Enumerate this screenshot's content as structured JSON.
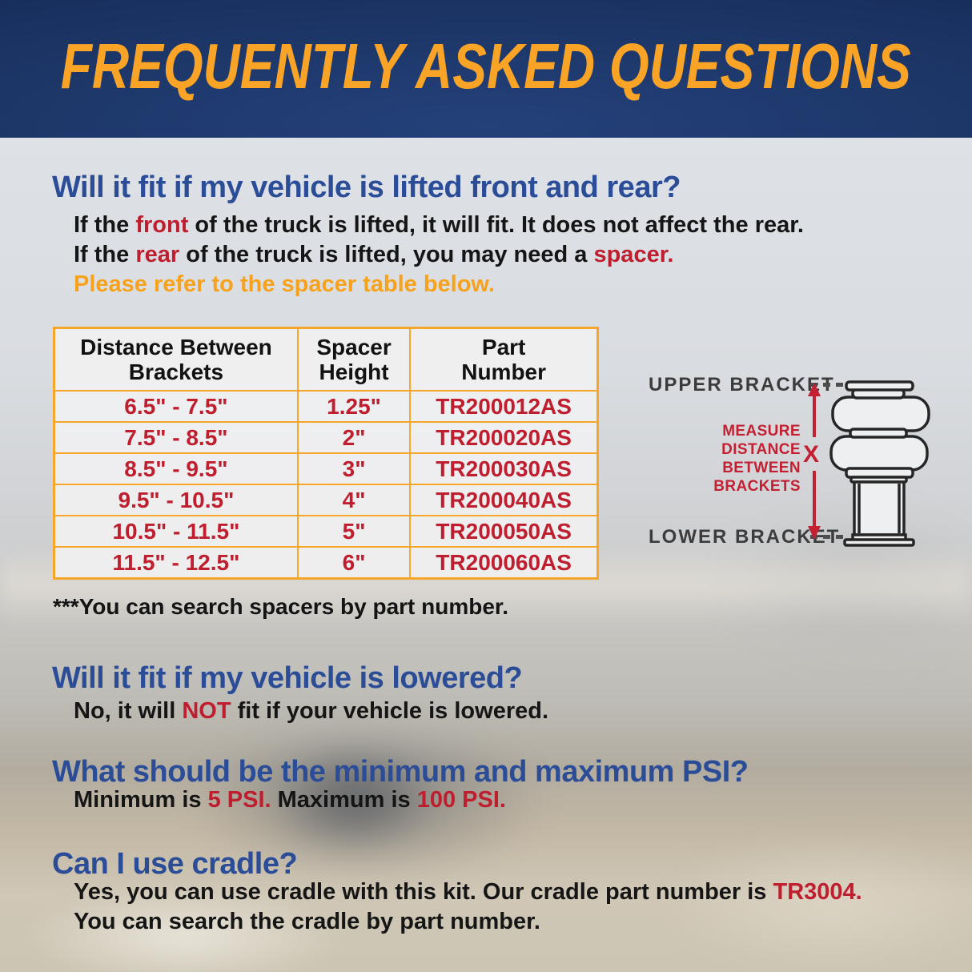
{
  "banner": {
    "title": "FREQUENTLY ASKED QUESTIONS"
  },
  "faq_lifted": {
    "question": "Will it fit if my vehicle is lifted front and rear?",
    "answer1": {
      "pre": "If the ",
      "highlight": "front",
      "post": " of the truck is lifted, it will fit. It does not affect the rear."
    },
    "answer2": {
      "pre": "If the ",
      "highlight": "rear",
      "mid": " of the truck is lifted, you may need a ",
      "highlight2": "spacer."
    },
    "answer3": "Please refer to the spacer table below."
  },
  "spacer_table": {
    "headers": [
      {
        "line1": "Distance Between",
        "line2": "Brackets"
      },
      {
        "line1": "Spacer",
        "line2": "Height"
      },
      {
        "line1": "Part",
        "line2": "Number"
      }
    ],
    "rows": [
      {
        "distance": "6.5\" - 7.5\"",
        "height": "1.25\"",
        "part": "TR200012AS"
      },
      {
        "distance": "7.5\" - 8.5\"",
        "height": "2\"",
        "part": "TR200020AS"
      },
      {
        "distance": "8.5\" - 9.5\"",
        "height": "3\"",
        "part": "TR200030AS"
      },
      {
        "distance": "9.5\" - 10.5\"",
        "height": "4\"",
        "part": "TR200040AS"
      },
      {
        "distance": "10.5\" - 11.5\"",
        "height": "5\"",
        "part": "TR200050AS"
      },
      {
        "distance": "11.5\" - 12.5\"",
        "height": "6\"",
        "part": "TR200060AS"
      }
    ],
    "footnote": "***You can search spacers by part number."
  },
  "diagram": {
    "upper_label": "UPPER BRACKET",
    "lower_label": "LOWER BRACKET",
    "measure_lines": [
      "MEASURE",
      "DISTANCE",
      "BETWEEN",
      "BRACKETS"
    ],
    "x_label": "X"
  },
  "faq_lowered": {
    "question": "Will it fit if my vehicle is lowered?",
    "answer": {
      "pre": "No, it will ",
      "highlight": "NOT",
      "post": " fit if your vehicle is lowered."
    }
  },
  "faq_psi": {
    "question": "What should be the minimum and maximum PSI?",
    "answer": {
      "pre": "Minimum is ",
      "highlight": "5 PSI.",
      "mid": " Maximum is ",
      "highlight2": "100 PSI."
    }
  },
  "faq_cradle": {
    "question": "Can I use cradle?",
    "answer1": {
      "pre": "Yes, you can use cradle with this kit. Our cradle part number is ",
      "highlight": "TR3004."
    },
    "answer2": "You can search the cradle by part number."
  },
  "colors": {
    "banner_bg": "#1B3464",
    "banner_text": "#F9A427",
    "heading_blue": "#2B4C97",
    "highlight_red": "#BE1E2E",
    "accent_orange": "#F6A21D",
    "table_border": "#F5A62B"
  }
}
